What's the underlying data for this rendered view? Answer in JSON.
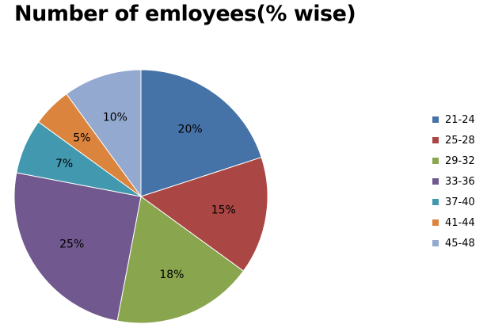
{
  "chart_data": {
    "type": "pie",
    "title": "Number of emloyees(% wise)",
    "categories": [
      "21-24",
      "25-28",
      "29-32",
      "33-36",
      "37-40",
      "41-44",
      "45-48"
    ],
    "values": [
      20,
      15,
      18,
      25,
      7,
      5,
      10
    ],
    "data_labels": [
      "20%",
      "15%",
      "18%",
      "25%",
      "7%",
      "5%",
      "10%"
    ],
    "colors": [
      "#4572A7",
      "#AA4643",
      "#89A54E",
      "#71588F",
      "#4198AF",
      "#DB843D",
      "#93A9CF"
    ],
    "legend": "right",
    "grid": false
  }
}
